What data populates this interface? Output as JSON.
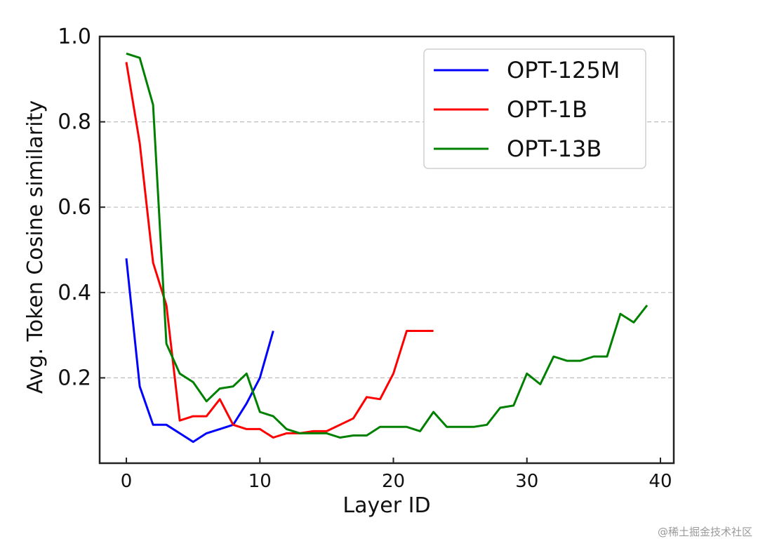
{
  "chart_data": {
    "type": "line",
    "title": "",
    "xlabel": "Layer ID",
    "ylabel": "Avg. Token Cosine similarity",
    "xlim": [
      -2,
      41
    ],
    "ylim": [
      0.0,
      1.0
    ],
    "xticks": [
      0,
      10,
      20,
      30,
      40
    ],
    "yticks": [
      0.2,
      0.4,
      0.6,
      0.8,
      1.0
    ],
    "xtick_labels": [
      "0",
      "10",
      "20",
      "30",
      "40"
    ],
    "ytick_labels": [
      "0.2",
      "0.4",
      "0.6",
      "0.8",
      "1.0"
    ],
    "grid": "horizontal dashed",
    "legend_position": "top-right",
    "series": [
      {
        "name": "OPT-125M",
        "color": "#0000ff",
        "x": [
          0,
          1,
          2,
          3,
          4,
          5,
          6,
          7,
          8,
          9,
          10,
          11
        ],
        "values": [
          0.48,
          0.18,
          0.09,
          0.09,
          0.07,
          0.05,
          0.07,
          0.08,
          0.09,
          0.14,
          0.2,
          0.31
        ]
      },
      {
        "name": "OPT-1B",
        "color": "#ff0000",
        "x": [
          0,
          1,
          2,
          3,
          4,
          5,
          6,
          7,
          8,
          9,
          10,
          11,
          12,
          13,
          14,
          15,
          16,
          17,
          18,
          19,
          20,
          21,
          22,
          23
        ],
        "values": [
          0.94,
          0.75,
          0.47,
          0.37,
          0.1,
          0.11,
          0.11,
          0.15,
          0.09,
          0.08,
          0.08,
          0.06,
          0.07,
          0.07,
          0.075,
          0.075,
          0.09,
          0.105,
          0.155,
          0.15,
          0.21,
          0.31,
          0.31,
          0.31
        ]
      },
      {
        "name": "OPT-13B",
        "color": "#008000",
        "x": [
          0,
          1,
          2,
          3,
          4,
          5,
          6,
          7,
          8,
          9,
          10,
          11,
          12,
          13,
          14,
          15,
          16,
          17,
          18,
          19,
          20,
          21,
          22,
          23,
          24,
          25,
          26,
          27,
          28,
          29,
          30,
          31,
          32,
          33,
          34,
          35,
          36,
          37,
          38,
          39
        ],
        "values": [
          0.96,
          0.95,
          0.84,
          0.28,
          0.21,
          0.19,
          0.145,
          0.175,
          0.18,
          0.21,
          0.12,
          0.11,
          0.08,
          0.07,
          0.07,
          0.07,
          0.06,
          0.065,
          0.065,
          0.085,
          0.085,
          0.085,
          0.075,
          0.12,
          0.085,
          0.085,
          0.085,
          0.09,
          0.13,
          0.135,
          0.21,
          0.185,
          0.25,
          0.24,
          0.24,
          0.25,
          0.25,
          0.35,
          0.33,
          0.37
        ]
      }
    ]
  },
  "watermark": "@稀土掘金技术社区"
}
